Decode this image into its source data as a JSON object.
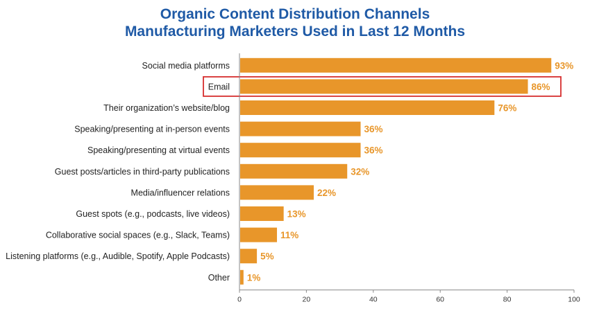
{
  "chart_data": {
    "type": "bar",
    "orientation": "horizontal",
    "title": "Organic Content Distribution Channels",
    "subtitle": "Manufacturing Marketers Used in Last 12 Months",
    "categories": [
      "Social media platforms",
      "Email",
      "Their organization’s website/blog",
      "Speaking/presenting at in-person events",
      "Speaking/presenting at virtual events",
      "Guest posts/articles in third-party publications",
      "Media/influencer relations",
      "Guest spots (e.g., podcasts, live videos)",
      "Collaborative social spaces (e.g., Slack, Teams)",
      "Listening platforms (e.g., Audible, Spotify, Apple Podcasts)",
      "Other"
    ],
    "values": [
      93,
      86,
      76,
      36,
      36,
      32,
      22,
      13,
      11,
      5,
      1
    ],
    "value_labels": [
      "93%",
      "86%",
      "76%",
      "36%",
      "36%",
      "32%",
      "22%",
      "13%",
      "11%",
      "5%",
      "1%"
    ],
    "highlighted_category": "Email",
    "xlim": [
      0,
      100
    ],
    "xticks": [
      0,
      20,
      40,
      60,
      80,
      100
    ],
    "grid": false,
    "colors": {
      "bar": "#e8962a",
      "value_label": "#e8962a",
      "title": "#1f5aa6",
      "highlight_box": "#d62e2e",
      "axis": "#888888"
    }
  }
}
